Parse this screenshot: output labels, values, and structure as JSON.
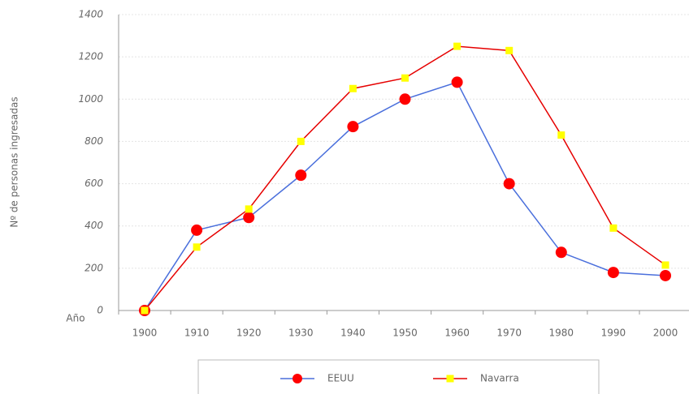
{
  "chart_data": {
    "type": "line",
    "y_label": "Nº de personas ingresadas",
    "x_label": "Año",
    "categories": [
      "1900",
      "1910",
      "1920",
      "1930",
      "1940",
      "1950",
      "1960",
      "1970",
      "1980",
      "1990",
      "2000"
    ],
    "series": [
      {
        "name": "EEUU",
        "color": "#4a6fdc",
        "marker": "circle",
        "marker_color": "#ff0000",
        "values": [
          0,
          380,
          440,
          640,
          870,
          1000,
          1080,
          600,
          275,
          180,
          165
        ]
      },
      {
        "name": "Navarra",
        "color": "#e60000",
        "marker": "square",
        "marker_color": "#ffff00",
        "values": [
          0,
          300,
          480,
          800,
          1050,
          1100,
          1250,
          1230,
          830,
          390,
          215
        ]
      }
    ],
    "ylim": [
      0,
      1400
    ],
    "yticks": [
      0,
      200,
      400,
      600,
      800,
      1000,
      1200,
      1400
    ],
    "grid": true,
    "legend": "bottom"
  }
}
